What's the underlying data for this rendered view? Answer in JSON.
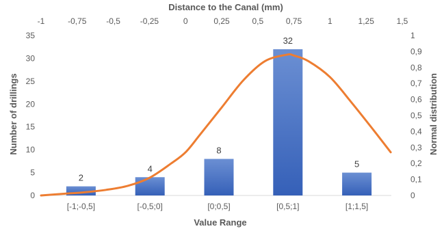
{
  "chart_data": {
    "type": "bar",
    "title_top": "Distance to the Canal (mm)",
    "xlabel": "Value Range",
    "ylabel": "Number of drillings",
    "ylabel_right": "Normal distribution",
    "categories": [
      "[-1;-0,5]",
      "[-0,5;0]",
      "[0;0,5]",
      "[0,5;1]",
      "[1;1,5]"
    ],
    "series": [
      {
        "values": [
          2,
          4,
          8,
          32,
          5
        ],
        "type": "bar",
        "color": "#4472C4"
      },
      {
        "type": "line",
        "color": "#ED7D31",
        "axis": "secondary",
        "x": [
          -1.0,
          -0.85,
          -0.7,
          -0.55,
          -0.4,
          -0.25,
          -0.1,
          0.0,
          0.1,
          0.25,
          0.4,
          0.55,
          0.7,
          0.75,
          0.85,
          1.0,
          1.15,
          1.3,
          1.42
        ],
        "y": [
          0.0,
          0.01,
          0.02,
          0.035,
          0.06,
          0.11,
          0.2,
          0.27,
          0.38,
          0.55,
          0.72,
          0.84,
          0.88,
          0.875,
          0.84,
          0.74,
          0.58,
          0.41,
          0.27
        ]
      }
    ],
    "y_left": {
      "min": 0,
      "max": 35,
      "ticks": [
        "0",
        "5",
        "10",
        "15",
        "20",
        "25",
        "30",
        "35"
      ]
    },
    "y_right": {
      "min": 0,
      "max": 1,
      "ticks": [
        "0",
        "0,1",
        "0,2",
        "0,3",
        "0,4",
        "0,5",
        "0,6",
        "0,7",
        "0,8",
        "0,9",
        "1"
      ]
    },
    "x_top": {
      "min": -1,
      "max": 1.5,
      "ticks": [
        "-1",
        "-0,75",
        "-0,5",
        "-0,25",
        "0",
        "0,25",
        "0,5",
        "0,75",
        "1",
        "1,25",
        "1,5"
      ]
    },
    "grid": false,
    "legend": "none"
  }
}
